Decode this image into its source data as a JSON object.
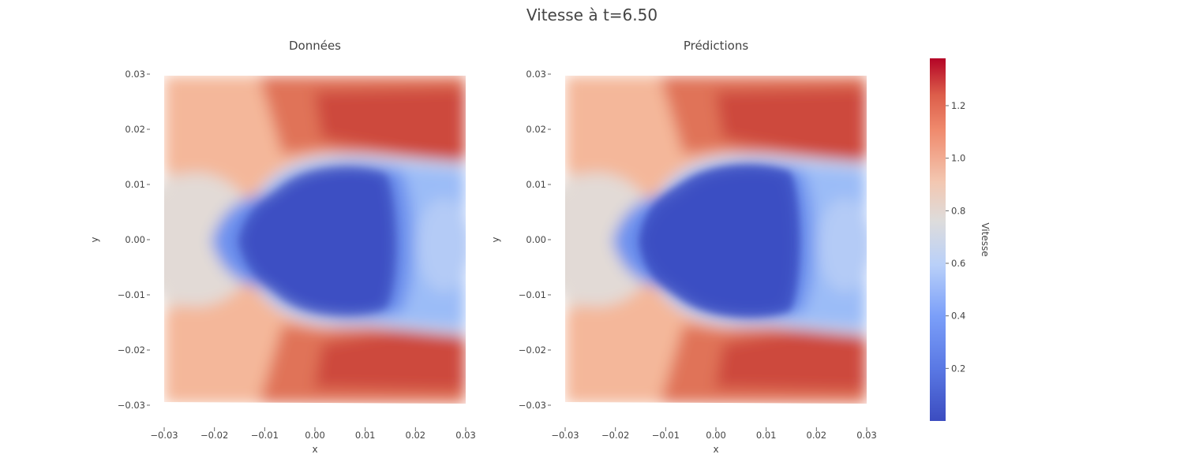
{
  "figure": {
    "title": "Vitesse à t=6.50"
  },
  "colors": {
    "low": "#3b4cc0",
    "mid": "#dddddd",
    "high": "#b40426"
  },
  "colormap": "coolwarm",
  "chart_data": [
    {
      "type": "heatmap",
      "title": "Données",
      "xlabel": "x",
      "ylabel": "y",
      "xlim": [
        -0.03,
        0.03
      ],
      "ylim": [
        -0.03,
        0.03
      ],
      "xticks": [
        "−0.03",
        "−0.02",
        "−0.01",
        "0.00",
        "0.01",
        "0.02",
        "0.03"
      ],
      "yticks": [
        "0.03",
        "0.02",
        "0.01",
        "0.00",
        "−0.01",
        "−0.02",
        "−0.03"
      ],
      "field": "velocity magnitude around a blunt body near x=0, y=0",
      "value_range": [
        0.0,
        1.38
      ]
    },
    {
      "type": "heatmap",
      "title": "Prédictions",
      "xlabel": "x",
      "ylabel": "y",
      "xlim": [
        -0.03,
        0.03
      ],
      "ylim": [
        -0.03,
        0.03
      ],
      "xticks": [
        "−0.03",
        "−0.02",
        "−0.01",
        "0.00",
        "0.01",
        "0.02",
        "0.03"
      ],
      "yticks": [
        "0.03",
        "0.02",
        "0.01",
        "0.00",
        "−0.01",
        "−0.02",
        "−0.03"
      ],
      "field": "velocity magnitude around a blunt body near x=0, y=0",
      "value_range": [
        0.0,
        1.38
      ]
    }
  ],
  "colorbar": {
    "label": "Vitesse",
    "min": 0.0,
    "max": 1.38,
    "ticks": [
      {
        "value": 0.2,
        "label": "0.2"
      },
      {
        "value": 0.4,
        "label": "0.4"
      },
      {
        "value": 0.6,
        "label": "0.6"
      },
      {
        "value": 0.8,
        "label": "0.8"
      },
      {
        "value": 1.0,
        "label": "1.0"
      },
      {
        "value": 1.2,
        "label": "1.2"
      }
    ]
  }
}
